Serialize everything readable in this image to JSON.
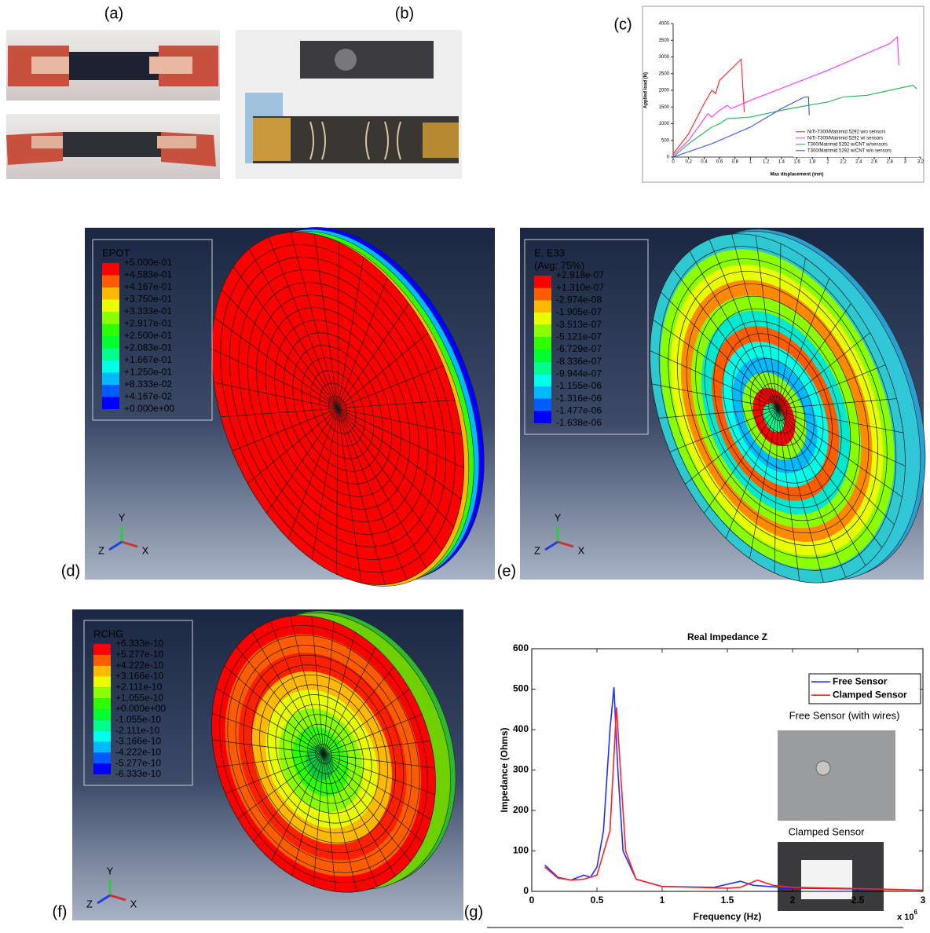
{
  "labels": {
    "a": "(a)",
    "b": "(b)",
    "c": "(c)"
  },
  "chart_data": [
    {
      "type": "line",
      "x_label": "Max displacement (mm)",
      "y_label": "Applied load (N)",
      "xlim": [
        0,
        3.2
      ],
      "ylim": [
        0,
        4000
      ],
      "xticks": [
        0,
        0.2,
        0.4,
        0.6,
        0.8,
        1,
        1.2,
        1.4,
        1.6,
        1.8,
        2,
        2.2,
        2.4,
        2.6,
        2.8,
        3,
        3.2
      ],
      "yticks": [
        0,
        500,
        1000,
        1500,
        2000,
        2500,
        3000,
        3500,
        4000
      ],
      "legend": "lower right",
      "series": [
        {
          "name": "NiTi-T300/Matrimid 5292 w/o sensors",
          "color": "#ff2020",
          "x": [
            0,
            0.2,
            0.4,
            0.5,
            0.55,
            0.6,
            0.8,
            0.88,
            0.92
          ],
          "values": [
            100,
            700,
            1600,
            2000,
            1900,
            2300,
            2750,
            2930,
            1350
          ]
        },
        {
          "name": "NiTi-T300/Matrimid 5292 w/ sensors",
          "color": "#ff30ff",
          "x": [
            0,
            0.2,
            0.45,
            0.5,
            0.6,
            0.7,
            0.75,
            1,
            1.5,
            2,
            2.5,
            2.8,
            2.9,
            2.92
          ],
          "values": [
            50,
            500,
            1300,
            1200,
            1400,
            1550,
            1450,
            1700,
            2150,
            2600,
            3100,
            3400,
            3600,
            2750
          ]
        },
        {
          "name": "T300/Matrimid 5292 w/CNT w/sensors",
          "color": "#20b050",
          "x": [
            0,
            0.2,
            0.5,
            0.6,
            0.7,
            1,
            1.5,
            2,
            2.2,
            2.5,
            3,
            3.1,
            3.15
          ],
          "values": [
            0,
            400,
            900,
            1000,
            1150,
            1200,
            1450,
            1650,
            1800,
            1850,
            2100,
            2150,
            2050
          ]
        },
        {
          "name": "T300/Matrimid 5292 w/CNT w/o sensors",
          "color": "#3050ff",
          "x": [
            0,
            0.5,
            1,
            1.4,
            1.7,
            1.75,
            1.76
          ],
          "values": [
            0,
            400,
            900,
            1450,
            1800,
            1800,
            1250
          ]
        }
      ]
    },
    {
      "type": "line",
      "title": "Real Impedance Z",
      "x_label": "Frequency (Hz)",
      "y_label": "Impedance (Ohms)",
      "x_scale_label": "x 10",
      "x_scale_exponent": "6",
      "xlim": [
        0,
        3
      ],
      "ylim": [
        0,
        600
      ],
      "xticks": [
        0,
        0.5,
        1,
        1.5,
        2,
        2.5,
        3
      ],
      "yticks": [
        0,
        100,
        200,
        300,
        400,
        500,
        600
      ],
      "legend": "upper right",
      "annotations": [
        "Free Sensor (with wires)",
        "Clamped Sensor"
      ],
      "series": [
        {
          "name": "Free Sensor",
          "color": "#2030ff",
          "x": [
            0.1,
            0.2,
            0.3,
            0.4,
            0.45,
            0.5,
            0.55,
            0.6,
            0.63,
            0.66,
            0.7,
            0.8,
            1,
            1.4,
            1.6,
            1.7,
            2,
            2.5,
            3
          ],
          "values": [
            65,
            35,
            28,
            40,
            35,
            60,
            150,
            400,
            505,
            300,
            100,
            30,
            12,
            10,
            25,
            15,
            8,
            6,
            3
          ]
        },
        {
          "name": "Clamped Sensor",
          "color": "#ff2020",
          "x": [
            0.1,
            0.2,
            0.3,
            0.4,
            0.5,
            0.6,
            0.65,
            0.68,
            0.72,
            0.8,
            1,
            1.5,
            1.6,
            1.73,
            1.85,
            2,
            2.5,
            3
          ],
          "values": [
            60,
            33,
            28,
            30,
            40,
            150,
            455,
            300,
            100,
            30,
            12,
            8,
            10,
            28,
            15,
            10,
            7,
            3
          ]
        }
      ]
    }
  ],
  "fe_plots": [
    {
      "label": "(d)",
      "legend_title": [
        "EPOT"
      ],
      "legend_values": [
        "+5.000e-01",
        "+4.583e-01",
        "+4.167e-01",
        "+3.750e-01",
        "+3.333e-01",
        "+2.917e-01",
        "+2.500e-01",
        "+2.083e-01",
        "+1.667e-01",
        "+1.250e-01",
        "+8.333e-02",
        "+4.167e-02",
        "+0.000e+00"
      ],
      "triad": [
        "Y",
        "Z",
        "X"
      ]
    },
    {
      "label": "(e)",
      "legend_title": [
        "E, E33",
        "(Avg: 75%)"
      ],
      "legend_values": [
        "+2.918e-07",
        "+1.310e-07",
        "-2.974e-08",
        "-1.905e-07",
        "-3.513e-07",
        "-5.121e-07",
        "-6.729e-07",
        "-8.336e-07",
        "-9.944e-07",
        "-1.155e-06",
        "-1.316e-06",
        "-1.477e-06",
        "-1.638e-06"
      ],
      "triad": [
        "Y",
        "Z",
        "X"
      ]
    },
    {
      "label": "(f)",
      "legend_title": [
        "RCHG"
      ],
      "legend_values": [
        "+6.333e-10",
        "+5.277e-10",
        "+4.222e-10",
        "+3.166e-10",
        "+2.111e-10",
        "+1.055e-10",
        "+0.000e+00",
        "-1.055e-10",
        "-2.111e-10",
        "-3.166e-10",
        "-4.222e-10",
        "-5.277e-10",
        "-6.333e-10"
      ],
      "triad": [
        "Y",
        "Z",
        "X"
      ]
    }
  ],
  "contour_colors": [
    "#ff0000",
    "#ff5c00",
    "#ffb900",
    "#e8ff00",
    "#8bff00",
    "#2eff00",
    "#00ff2e",
    "#00ff8b",
    "#00ffe8",
    "#00b9ff",
    "#005cff",
    "#0000ff"
  ],
  "g_label": "(g)"
}
